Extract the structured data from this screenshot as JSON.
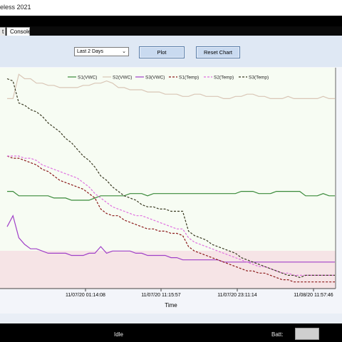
{
  "window": {
    "title": "eless 2021"
  },
  "tabs": [
    {
      "label": "t"
    },
    {
      "label": "Console"
    }
  ],
  "toolbar": {
    "range_select": {
      "selected": "Last 2 Days"
    },
    "plot_label": "Plot",
    "reset_label": "Reset Chart"
  },
  "status": {
    "state": "Idle",
    "batt_label": "Batt:"
  },
  "colors": {
    "S1(VWC)": "#3a8a3a",
    "S2(VWC)": "#d9c6b6",
    "S3(VWC)": "#a040c8",
    "S1(Temp)": "#8a1818",
    "S2(Temp)": "#e070e0",
    "S3(Temp)": "#3a3a22",
    "low_band": "#f6e4e6",
    "plot_bg": "#f7fcf3"
  },
  "chart_data": {
    "type": "line",
    "xlabel": "Time",
    "xticks": [
      "11/07/20 01:14:08",
      "11/07/20 11:15:57",
      "11/07/20 23:11:14",
      "11/08/20 11:57:46"
    ],
    "x_index": [
      0,
      1,
      2,
      3,
      4,
      5,
      6,
      7,
      8,
      9,
      10,
      11,
      12,
      13,
      14,
      15,
      16,
      17,
      18,
      19,
      20,
      21,
      22,
      23,
      24,
      25,
      26,
      27,
      28,
      29,
      30,
      31,
      32,
      33,
      34,
      35,
      36,
      37,
      38,
      39,
      40,
      41,
      42,
      43,
      44,
      45,
      46,
      47,
      48,
      49,
      50,
      51,
      52,
      53,
      54,
      55,
      56
    ],
    "ylim": [
      0,
      100
    ],
    "grid": false,
    "legend": "top",
    "series": [
      {
        "name": "S1(VWC)",
        "style": "solid",
        "values": [
          44,
          44,
          42,
          42,
          42,
          42,
          42,
          42,
          41,
          41,
          41,
          40,
          40,
          40,
          40,
          41,
          42,
          42,
          42,
          42,
          42,
          43,
          43,
          43,
          42,
          43,
          43,
          43,
          43,
          43,
          43,
          43,
          43,
          43,
          43,
          43,
          43,
          43,
          43,
          43,
          44,
          44,
          44,
          43,
          43,
          43,
          44,
          44,
          44,
          44,
          44,
          42,
          42,
          42,
          43,
          42,
          42
        ]
      },
      {
        "name": "S2(VWC)",
        "style": "solid",
        "values": [
          86,
          86,
          97,
          95,
          95,
          93,
          93,
          92,
          92,
          91,
          91,
          91,
          91,
          92,
          92,
          93,
          93,
          94,
          93,
          91,
          91,
          90,
          90,
          90,
          89,
          89,
          89,
          88,
          88,
          88,
          87,
          87,
          88,
          88,
          87,
          87,
          87,
          86,
          86,
          87,
          87,
          88,
          88,
          87,
          87,
          86,
          86,
          86,
          87,
          86,
          86,
          86,
          86,
          86,
          87,
          86,
          86
        ]
      },
      {
        "name": "S3(VWC)",
        "style": "solid",
        "values": [
          28,
          33,
          23,
          20,
          18,
          18,
          17,
          16,
          16,
          16,
          16,
          15,
          15,
          15,
          16,
          16,
          19,
          16,
          17,
          17,
          17,
          17,
          16,
          16,
          15,
          15,
          15,
          15,
          14,
          14,
          13,
          13,
          13,
          13,
          13,
          13,
          13,
          12,
          12,
          12,
          12,
          12,
          12,
          12,
          12,
          12,
          12,
          12,
          12,
          12,
          12,
          12,
          12,
          12,
          12,
          12,
          12
        ]
      },
      {
        "name": "S1(Temp)",
        "style": "dashed",
        "values": [
          60,
          59,
          59,
          58,
          57,
          56,
          54,
          53,
          51,
          49,
          48,
          47,
          46,
          45,
          43,
          41,
          36,
          34,
          33,
          33,
          31,
          30,
          29,
          28,
          27,
          27,
          26,
          26,
          25,
          25,
          24,
          19,
          17,
          16,
          15,
          14,
          13,
          12,
          11,
          10,
          9,
          8,
          8,
          7,
          7,
          6,
          5,
          4,
          4,
          3,
          3,
          3,
          3,
          3,
          3,
          3,
          3
        ]
      },
      {
        "name": "S2(Temp)",
        "style": "dashed",
        "values": [
          60,
          60,
          60,
          59,
          59,
          58,
          56,
          55,
          54,
          53,
          52,
          51,
          50,
          48,
          46,
          43,
          41,
          39,
          37,
          36,
          35,
          34,
          33,
          33,
          32,
          31,
          30,
          29,
          28,
          27,
          27,
          23,
          21,
          20,
          19,
          18,
          17,
          16,
          15,
          14,
          13,
          12,
          11,
          10,
          10,
          9,
          8,
          7,
          7,
          6,
          6,
          6,
          6,
          6,
          6,
          6,
          6
        ]
      },
      {
        "name": "S3(Temp)",
        "style": "dashed",
        "values": [
          95,
          94,
          84,
          83,
          81,
          80,
          78,
          75,
          73,
          71,
          68,
          66,
          63,
          60,
          58,
          55,
          51,
          49,
          46,
          44,
          42,
          41,
          40,
          38,
          37,
          37,
          36,
          36,
          35,
          35,
          35,
          26,
          24,
          23,
          22,
          20,
          19,
          18,
          17,
          16,
          14,
          13,
          12,
          11,
          10,
          9,
          8,
          7,
          6,
          6,
          5,
          6,
          6,
          6,
          6,
          6,
          6
        ]
      }
    ]
  }
}
